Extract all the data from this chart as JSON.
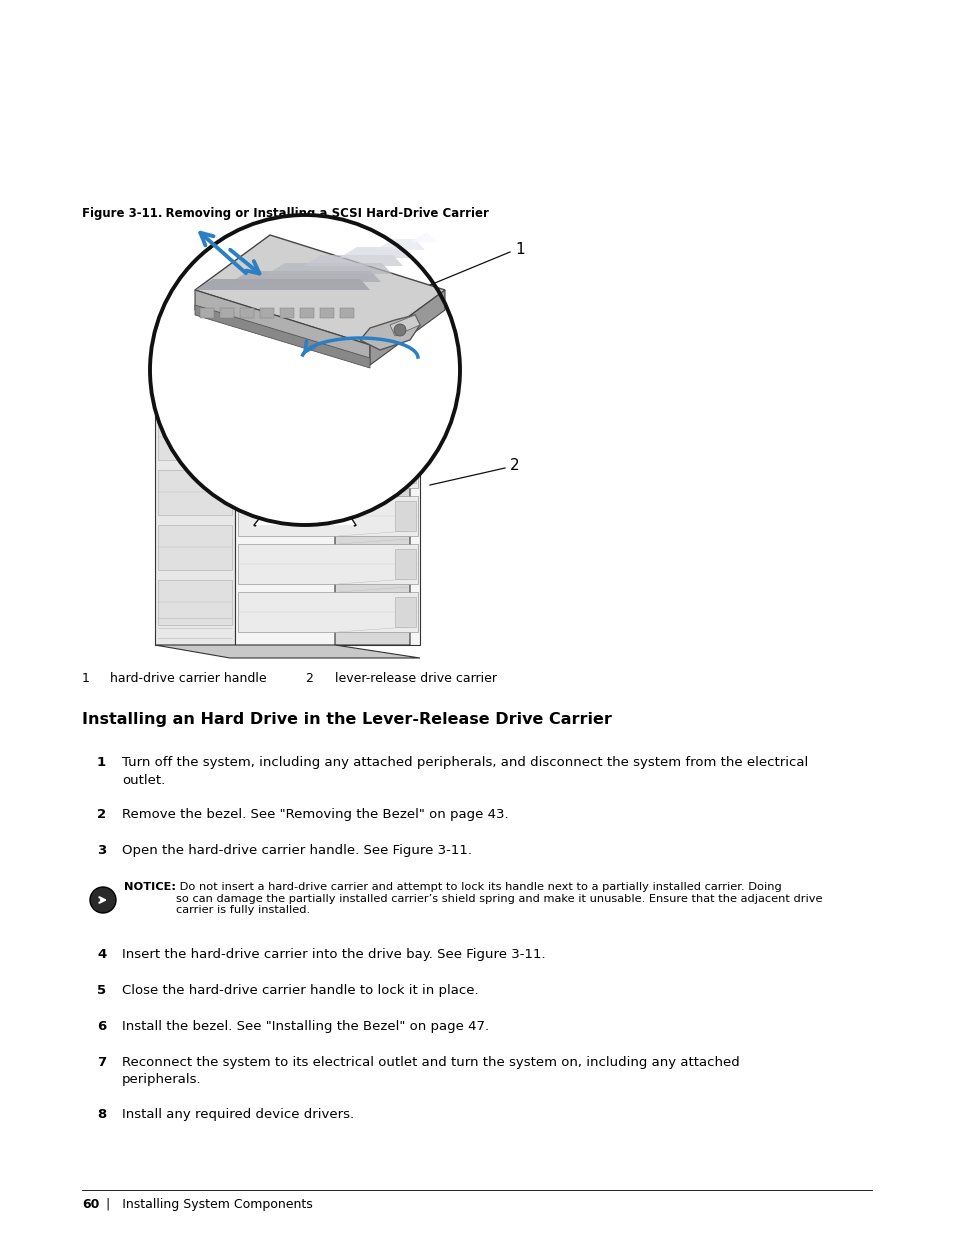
{
  "fig_caption_label": "Figure 3-11.",
  "fig_caption_text": "    Removing or Installing a SCSI Hard-Drive Carrier",
  "legend_1_num": "1",
  "legend_1_label": "hard-drive carrier handle",
  "legend_2_num": "2",
  "legend_2_label": "lever-release drive carrier",
  "section_heading": "Installing an Hard Drive in the Lever-Release Drive Carrier",
  "steps": [
    {
      "num": "1",
      "text": "Turn off the system, including any attached peripherals, and disconnect the system from the electrical\noutlet."
    },
    {
      "num": "2",
      "text": "Remove the bezel. See \"Removing the Bezel\" on page 43."
    },
    {
      "num": "3",
      "text": "Open the hard-drive carrier handle. See Figure 3-11."
    },
    {
      "num": "4",
      "text": "Insert the hard-drive carrier into the drive bay. See Figure 3-11."
    },
    {
      "num": "5",
      "text": "Close the hard-drive carrier handle to lock it in place."
    },
    {
      "num": "6",
      "text": "Install the bezel. See \"Installing the Bezel\" on page 47."
    },
    {
      "num": "7",
      "text": "Reconnect the system to its electrical outlet and turn the system on, including any attached\nperipherals."
    },
    {
      "num": "8",
      "text": "Install any required device drivers."
    }
  ],
  "notice_bold": "NOTICE:",
  "notice_text": " Do not insert a hard-drive carrier and attempt to lock its handle next to a partially installed carrier. Doing\nso can damage the partially installed carrier’s shield spring and make it unusable. Ensure that the adjacent drive\ncarrier is fully installed.",
  "footer_num": "60",
  "footer_text": "  |   Installing System Components",
  "bg": "#ffffff",
  "fg": "#000000",
  "blue": "#2b7fc2"
}
